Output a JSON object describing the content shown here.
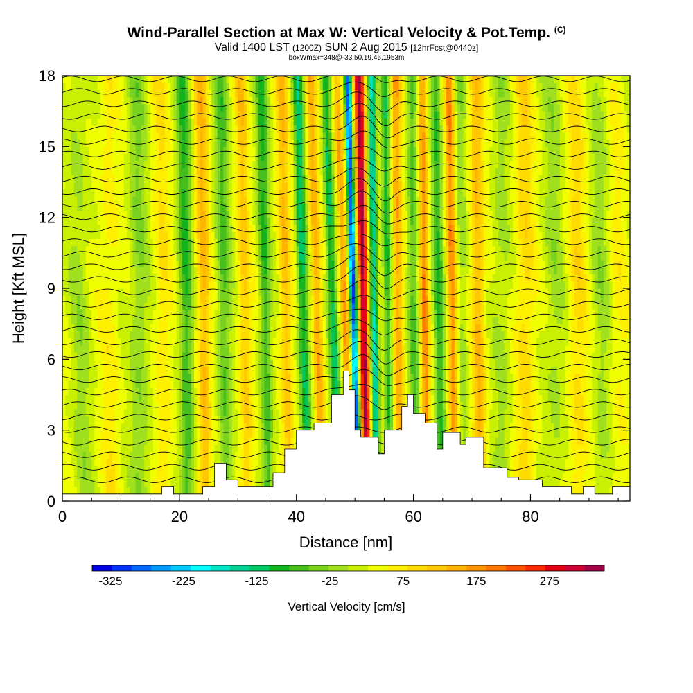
{
  "header": {
    "title": "Wind-Parallel Section at Max W: Vertical Velocity & Pot.Temp.",
    "title_unit": "(C)",
    "valid_prefix": "Valid 1400 LST",
    "valid_utc": "(1200Z)",
    "valid_date": "SUN 2 Aug 2015",
    "forecast": "[12hrFcst@0440z]",
    "box_info": "boxWmax=348@-33.50,19.46,1953m"
  },
  "chart_data": {
    "type": "heatmap",
    "title": "Wind-Parallel Section at Max W: Vertical Velocity & Pot.Temp.",
    "xlabel": "Distance [nm]",
    "ylabel": "Height [Kft MSL]",
    "xlim": [
      0,
      97
    ],
    "ylim": [
      0,
      18
    ],
    "x_ticks": [
      "0",
      "20",
      "40",
      "60",
      "80"
    ],
    "x_tick_values": [
      0,
      20,
      40,
      60,
      80
    ],
    "y_ticks": [
      "0",
      "3",
      "6",
      "9",
      "12",
      "15",
      "18"
    ],
    "y_tick_values": [
      0,
      3,
      6,
      9,
      12,
      15,
      18
    ],
    "max_w_cm_s": 348,
    "terrain_kft": [
      [
        0,
        0.3
      ],
      [
        17,
        0.3
      ],
      [
        17,
        0.6
      ],
      [
        19,
        0.6
      ],
      [
        19,
        0.3
      ],
      [
        24,
        0.3
      ],
      [
        24,
        0.6
      ],
      [
        26,
        0.6
      ],
      [
        26,
        1.6
      ],
      [
        28,
        1.6
      ],
      [
        28,
        0.9
      ],
      [
        30,
        0.9
      ],
      [
        30,
        0.6
      ],
      [
        36,
        0.6
      ],
      [
        36,
        1.2
      ],
      [
        38,
        1.2
      ],
      [
        38,
        2.2
      ],
      [
        40,
        2.2
      ],
      [
        40,
        3.0
      ],
      [
        43,
        3.0
      ],
      [
        43,
        3.3
      ],
      [
        46,
        3.3
      ],
      [
        46,
        4.5
      ],
      [
        48,
        4.5
      ],
      [
        48,
        5.5
      ],
      [
        49,
        5.5
      ],
      [
        49,
        4.7
      ],
      [
        50,
        4.7
      ],
      [
        50,
        3.0
      ],
      [
        51,
        3.0
      ],
      [
        51,
        2.7
      ],
      [
        54,
        2.7
      ],
      [
        54,
        2.0
      ],
      [
        55,
        2.0
      ],
      [
        55,
        3.0
      ],
      [
        58,
        3.0
      ],
      [
        58,
        4.0
      ],
      [
        59,
        4.0
      ],
      [
        59,
        4.5
      ],
      [
        60,
        4.5
      ],
      [
        60,
        3.7
      ],
      [
        62,
        3.7
      ],
      [
        62,
        3.3
      ],
      [
        64,
        3.3
      ],
      [
        64,
        2.2
      ],
      [
        65,
        2.2
      ],
      [
        65,
        2.9
      ],
      [
        68,
        2.9
      ],
      [
        68,
        2.4
      ],
      [
        69,
        2.4
      ],
      [
        69,
        2.7
      ],
      [
        72,
        2.7
      ],
      [
        72,
        1.4
      ],
      [
        76,
        1.4
      ],
      [
        76,
        1.0
      ],
      [
        78,
        1.0
      ],
      [
        78,
        0.9
      ],
      [
        82,
        0.9
      ],
      [
        82,
        0.6
      ],
      [
        87,
        0.6
      ],
      [
        87,
        0.3
      ],
      [
        89,
        0.3
      ],
      [
        89,
        0.6
      ],
      [
        91,
        0.6
      ],
      [
        91,
        0.3
      ],
      [
        94,
        0.3
      ],
      [
        94,
        0.6
      ],
      [
        97,
        0.6
      ]
    ],
    "colorbar": {
      "label": "Vertical Velocity [cm/s]",
      "tick_labels": [
        "-325",
        "-225",
        "-125",
        "-25",
        "75",
        "175",
        "275"
      ],
      "tick_values": [
        -325,
        -225,
        -125,
        -25,
        75,
        175,
        275
      ],
      "range": [
        -350,
        350
      ],
      "colors": [
        "#0000e6",
        "#0033ff",
        "#0066ff",
        "#0099ff",
        "#00ccff",
        "#00ffff",
        "#00e6c8",
        "#00d296",
        "#00c864",
        "#14b41e",
        "#46be1e",
        "#78d21e",
        "#a0e01e",
        "#c8f000",
        "#f0ff00",
        "#fff000",
        "#ffdc00",
        "#ffc800",
        "#ffb400",
        "#ff9600",
        "#ff7800",
        "#ff5000",
        "#ff2800",
        "#e60014",
        "#cc0032",
        "#a00046"
      ]
    }
  }
}
